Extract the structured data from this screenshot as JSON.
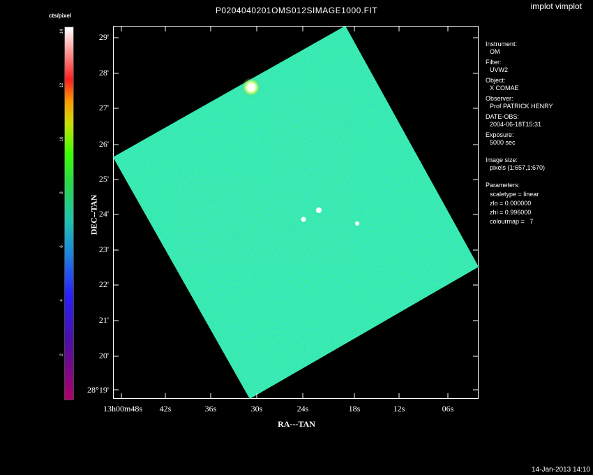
{
  "window": {
    "title": "P0204040201OMS012SIMAGE1000.FIT",
    "app_label": "implot vimplot",
    "timestamp": "14-Jan-2013 14:10"
  },
  "colorbar": {
    "label": "cts/pixel",
    "ticks": [
      "14",
      "12",
      "10",
      "8",
      "6",
      "4",
      "2"
    ]
  },
  "axes": {
    "y_title": "DEC--TAN",
    "x_title": "RA---TAN",
    "y_ticks": [
      "29'",
      "28'",
      "27'",
      "26'",
      "25'",
      "24'",
      "23'",
      "22'",
      "21'",
      "20'",
      "28°19'"
    ],
    "x_ticks": [
      "13h00m48s",
      "42s",
      "36s",
      "30s",
      "24s",
      "18s",
      "12s",
      "06s"
    ]
  },
  "info": {
    "instrument_label": "Instrument:",
    "instrument": "OM",
    "filter_label": "Filter:",
    "filter": "UVW2",
    "object_label": "Object:",
    "object": "X COMAE",
    "observer_label": "Observer:",
    "observer": "Prof PATRICK HENRY",
    "date_label": "DATE-OBS:",
    "date": "2004-06-18T15:31",
    "exposure_label": "Exposure:",
    "exposure": "5000 sec",
    "size_label": "Image size:",
    "size": "pixels (1:657,1:670)",
    "params_label": "Parameters:",
    "scaletype": "scaletype = linear",
    "zlo": "zlo = 0.000000",
    "zhi": "zhi = 0.996000",
    "colourmap": "colourmap =   7"
  },
  "colors": {
    "background": "#000000",
    "noise_base": "#1fb98a"
  }
}
